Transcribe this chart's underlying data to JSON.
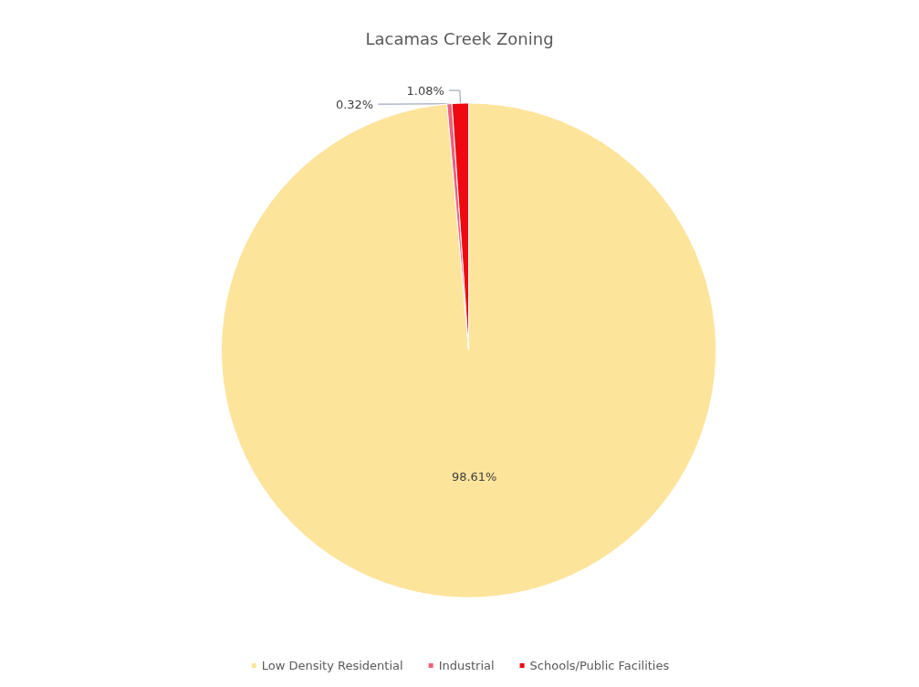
{
  "chart_data": {
    "type": "pie",
    "title": "Lacamas Creek Zoning",
    "categories": [
      "Low Density Residential",
      "Industrial",
      "Schools/Public Facilities"
    ],
    "values": [
      98.61,
      0.32,
      1.08
    ],
    "colors": [
      "#fde49b",
      "#f0607a",
      "#ee0a10"
    ],
    "value_labels": [
      "98.61%",
      "0.32%",
      "1.08%"
    ],
    "legend": "bottom"
  }
}
